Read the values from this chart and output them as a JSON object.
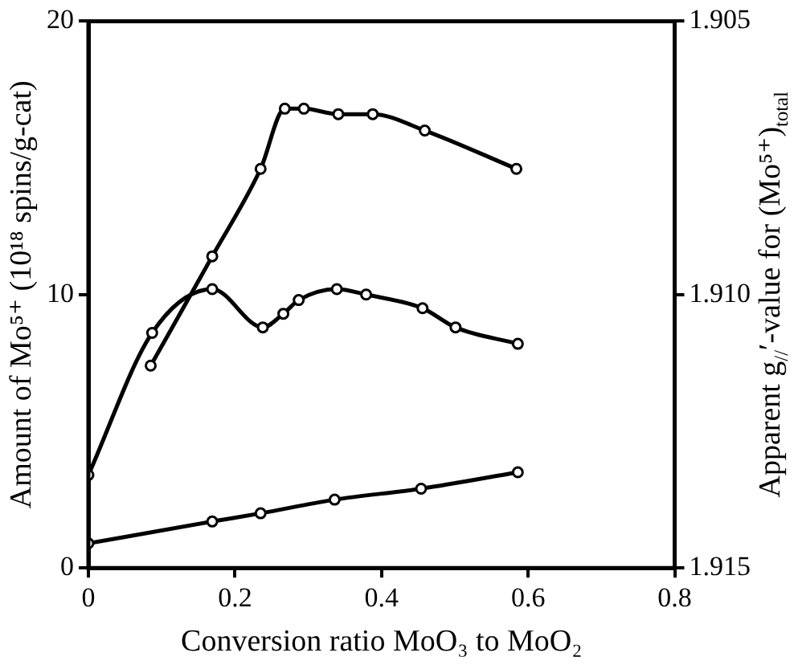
{
  "chart_data": {
    "type": "line",
    "xlabel": "Conversion ratio MoO₃ to MoO₂",
    "ylabel": "Amount of Mo⁵⁺ (10¹⁸ spins/g-cat)",
    "y2label": "Apparent g$_{//}$′-value for (Mo⁵⁺)$_{total}$",
    "xlim": [
      0,
      0.8
    ],
    "xticks": [
      {
        "value": 0,
        "label": "0"
      },
      0.2,
      0.4,
      0.6,
      0.8
    ],
    "ylim": [
      0,
      20
    ],
    "yticks": [
      0,
      10,
      20
    ],
    "y2lim": [
      1.915,
      1.905
    ],
    "y2ticks": [
      1.905,
      {
        "value": 1.91,
        "label": "1.910"
      },
      1.915
    ],
    "grid": false,
    "legend": false,
    "marker": "circle",
    "line_style": "solid",
    "series": [
      {
        "color": "#000000",
        "axis": "y2",
        "x": [
          0.085,
          0.169,
          0.235,
          0.268,
          0.294,
          0.341,
          0.388,
          0.459,
          0.584
        ],
        "values": [
          1.9113,
          1.9093,
          1.9077,
          1.9066,
          1.9066,
          1.9067,
          1.9067,
          1.907,
          1.9077
        ]
      },
      {
        "color": "#000000",
        "x": [
          0,
          0.087,
          0.169,
          0.238,
          0.266,
          0.287,
          0.339,
          0.379,
          0.456,
          0.501,
          0.586
        ],
        "values": [
          3.4,
          8.6,
          10.2,
          8.8,
          9.3,
          9.8,
          10.2,
          10.0,
          9.5,
          8.8,
          8.2
        ]
      },
      {
        "color": "#000000",
        "x": [
          0,
          0.169,
          0.235,
          0.336,
          0.454,
          0.586
        ],
        "values": [
          0.9,
          1.7,
          2.0,
          2.5,
          2.9,
          3.5
        ]
      }
    ]
  }
}
